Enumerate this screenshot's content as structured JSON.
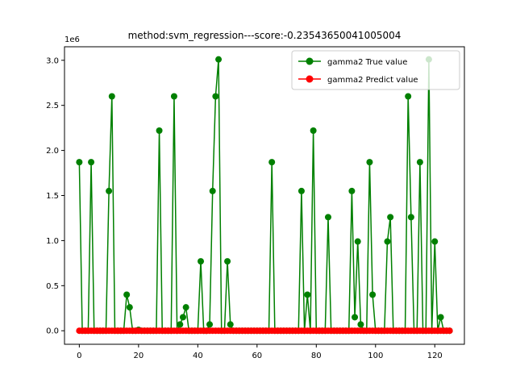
{
  "chart_data": {
    "type": "line",
    "title": "method:svm_regression---score:-0.23543650041005004",
    "xlabel": "",
    "ylabel": "",
    "y_offset_label": "1e6",
    "xlim": [
      -5,
      130
    ],
    "ylim": [
      -0.15,
      3.15
    ],
    "x_ticks": [
      0,
      20,
      40,
      60,
      80,
      100,
      120
    ],
    "y_ticks": [
      0.0,
      0.5,
      1.0,
      1.5,
      2.0,
      2.5,
      3.0
    ],
    "y_tick_labels": [
      "0.0",
      "0.5",
      "1.0",
      "1.5",
      "2.0",
      "2.5",
      "3.0"
    ],
    "legend_position": "top-right",
    "grid": false,
    "series": [
      {
        "name": "gamma2 True value",
        "color": "#008000",
        "x": [
          0,
          1,
          2,
          3,
          4,
          5,
          6,
          7,
          8,
          9,
          10,
          11,
          12,
          13,
          14,
          15,
          16,
          17,
          18,
          19,
          20,
          21,
          22,
          23,
          24,
          25,
          26,
          27,
          28,
          29,
          30,
          31,
          32,
          33,
          34,
          35,
          36,
          37,
          38,
          39,
          40,
          41,
          42,
          43,
          44,
          45,
          46,
          47,
          48,
          49,
          50,
          51,
          52,
          53,
          54,
          55,
          56,
          57,
          58,
          59,
          60,
          61,
          62,
          63,
          64,
          65,
          66,
          67,
          68,
          69,
          70,
          71,
          72,
          73,
          74,
          75,
          76,
          77,
          78,
          79,
          80,
          81,
          82,
          83,
          84,
          85,
          86,
          87,
          88,
          89,
          90,
          91,
          92,
          93,
          94,
          95,
          96,
          97,
          98,
          99,
          100,
          101,
          102,
          103,
          104,
          105,
          106,
          107,
          108,
          109,
          110,
          111,
          112,
          113,
          114,
          115,
          116,
          117,
          118,
          119,
          120,
          121,
          122,
          123,
          124,
          125
        ],
        "values": [
          1.87,
          0,
          0,
          0,
          1.87,
          0,
          0,
          0,
          0,
          0,
          1.55,
          2.6,
          0,
          0,
          0,
          0,
          0.4,
          0.26,
          0,
          0,
          0.01,
          0,
          0,
          0,
          0,
          0,
          0,
          2.22,
          0,
          0,
          0,
          0,
          2.6,
          0,
          0.07,
          0.15,
          0.26,
          0,
          0,
          0,
          0,
          0.77,
          0,
          0,
          0.07,
          1.55,
          2.6,
          3.01,
          0,
          0,
          0.77,
          0.07,
          0,
          0,
          0,
          0,
          0,
          0,
          0,
          0,
          0,
          0,
          0,
          0,
          0,
          1.87,
          0,
          0,
          0,
          0,
          0,
          0,
          0,
          0,
          0,
          1.55,
          0,
          0.4,
          0,
          2.22,
          0,
          0,
          0,
          0,
          1.26,
          0,
          0,
          0,
          0,
          0,
          0,
          0,
          1.55,
          0.15,
          0.99,
          0.07,
          0,
          0,
          1.87,
          0.4,
          0,
          0,
          0,
          0,
          0.99,
          1.26,
          0,
          0,
          0,
          0,
          0,
          2.6,
          1.26,
          0,
          0,
          1.87,
          0,
          0,
          3.01,
          0,
          0.99,
          0,
          0.15,
          0,
          0,
          0
        ]
      },
      {
        "name": "gamma2 Predict value",
        "color": "#ff0000",
        "x": [
          0,
          1,
          2,
          3,
          4,
          5,
          6,
          7,
          8,
          9,
          10,
          11,
          12,
          13,
          14,
          15,
          16,
          17,
          18,
          19,
          20,
          21,
          22,
          23,
          24,
          25,
          26,
          27,
          28,
          29,
          30,
          31,
          32,
          33,
          34,
          35,
          36,
          37,
          38,
          39,
          40,
          41,
          42,
          43,
          44,
          45,
          46,
          47,
          48,
          49,
          50,
          51,
          52,
          53,
          54,
          55,
          56,
          57,
          58,
          59,
          60,
          61,
          62,
          63,
          64,
          65,
          66,
          67,
          68,
          69,
          70,
          71,
          72,
          73,
          74,
          75,
          76,
          77,
          78,
          79,
          80,
          81,
          82,
          83,
          84,
          85,
          86,
          87,
          88,
          89,
          90,
          91,
          92,
          93,
          94,
          95,
          96,
          97,
          98,
          99,
          100,
          101,
          102,
          103,
          104,
          105,
          106,
          107,
          108,
          109,
          110,
          111,
          112,
          113,
          114,
          115,
          116,
          117,
          118,
          119,
          120,
          121,
          122,
          123,
          124,
          125
        ],
        "values": [
          0,
          0,
          0,
          0,
          0,
          0,
          0,
          0,
          0,
          0,
          0,
          0,
          0,
          0,
          0,
          0,
          0,
          0,
          0,
          0,
          0,
          0,
          0,
          0,
          0,
          0,
          0,
          0,
          0,
          0,
          0,
          0,
          0,
          0,
          0,
          0,
          0,
          0,
          0,
          0,
          0,
          0,
          0,
          0,
          0,
          0,
          0,
          0,
          0,
          0,
          0,
          0,
          0,
          0,
          0,
          0,
          0,
          0,
          0,
          0,
          0,
          0,
          0,
          0,
          0,
          0,
          0,
          0,
          0,
          0,
          0,
          0,
          0,
          0,
          0,
          0,
          0,
          0,
          0,
          0,
          0,
          0,
          0,
          0,
          0,
          0,
          0,
          0,
          0,
          0,
          0,
          0,
          0,
          0,
          0,
          0,
          0,
          0,
          0,
          0,
          0,
          0,
          0,
          0,
          0,
          0,
          0,
          0,
          0,
          0,
          0,
          0,
          0,
          0,
          0,
          0,
          0,
          0,
          0,
          0,
          0,
          0,
          0,
          0,
          0,
          0
        ]
      }
    ]
  }
}
